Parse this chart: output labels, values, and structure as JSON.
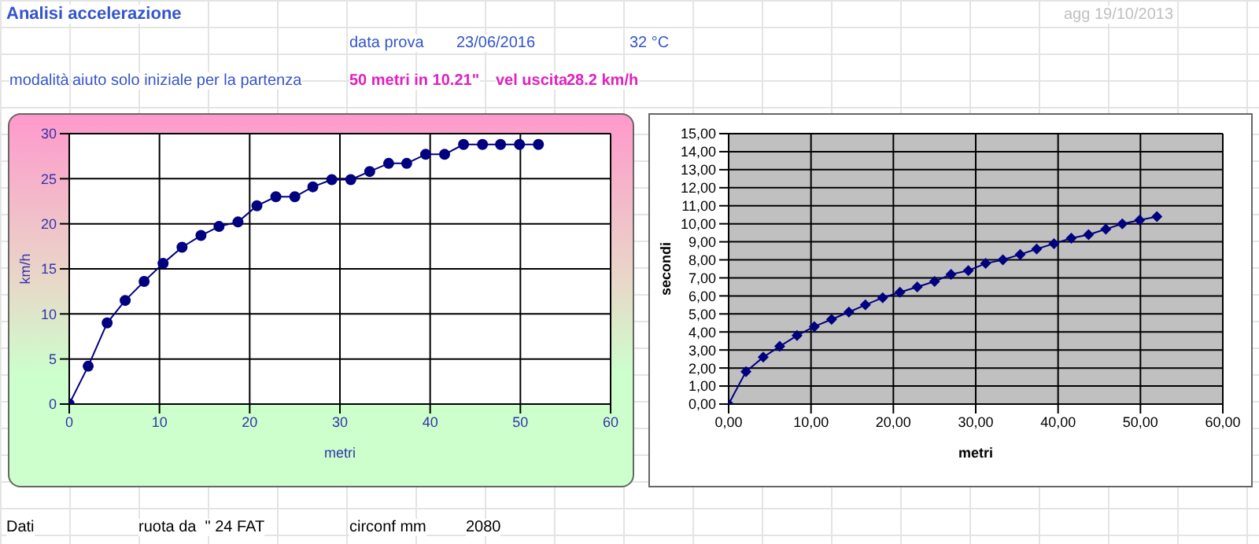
{
  "chart_data": [
    {
      "type": "line",
      "title": "Analisi accelerazione",
      "annotations": [
        "agg 19/10/2013",
        "data prova",
        "23/06/2016",
        "32 °C",
        "modalità",
        "aiuto solo iniziale per la partenza",
        "50 metri in 10.21\"",
        "vel uscita",
        "28.2 km/h",
        "Dati",
        "ruota da  \" 24 FAT",
        "circonf mm",
        "2080"
      ],
      "xlabel": "metri",
      "ylabel": "km/h",
      "xlim": [
        0,
        60
      ],
      "xticks": [
        0,
        10,
        20,
        30,
        40,
        50,
        60
      ],
      "ylim": [
        0,
        30
      ],
      "yticks": [
        0,
        5,
        10,
        15,
        20,
        25,
        30
      ],
      "grid": true,
      "marker": "circle",
      "line_style": "solid",
      "x": [
        0,
        2.1,
        4.2,
        6.2,
        8.3,
        10.4,
        12.5,
        14.6,
        16.6,
        18.7,
        20.8,
        22.9,
        25,
        27,
        29.1,
        31.2,
        33.3,
        35.4,
        37.4,
        39.5,
        41.6,
        43.7,
        45.8,
        47.8,
        49.9,
        52
      ],
      "series": [
        {
          "color": "#000080",
          "values": [
            0,
            4.2,
            9,
            11.5,
            13.6,
            15.6,
            17.4,
            18.7,
            19.7,
            20.2,
            22,
            23,
            23,
            24.1,
            24.9,
            24.9,
            25.8,
            26.7,
            26.7,
            27.7,
            27.7,
            28.8,
            28.8,
            28.8,
            28.8,
            28.8
          ]
        }
      ]
    },
    {
      "type": "line",
      "xlabel": "metri",
      "ylabel": "secondi",
      "xlim": [
        0,
        60
      ],
      "xticks": [
        {
          "value": 0,
          "label": "0,00"
        },
        {
          "value": 10,
          "label": "10,00"
        },
        {
          "value": 20,
          "label": "20,00"
        },
        {
          "value": 30,
          "label": "30,00"
        },
        {
          "value": 40,
          "label": "40,00"
        },
        {
          "value": 50,
          "label": "50,00"
        },
        {
          "value": 60,
          "label": "60,00"
        }
      ],
      "ylim": [
        0,
        15
      ],
      "yticks": [
        {
          "value": 0,
          "label": "0,00"
        },
        {
          "value": 1,
          "label": "1,00"
        },
        {
          "value": 2,
          "label": "2,00"
        },
        {
          "value": 3,
          "label": "3,00"
        },
        {
          "value": 4,
          "label": "4,00"
        },
        {
          "value": 5,
          "label": "5,00"
        },
        {
          "value": 6,
          "label": "6,00"
        },
        {
          "value": 7,
          "label": "7,00"
        },
        {
          "value": 8,
          "label": "8,00"
        },
        {
          "value": 9,
          "label": "9,00"
        },
        {
          "value": 10,
          "label": "10,00"
        },
        {
          "value": 11,
          "label": "11,00"
        },
        {
          "value": 12,
          "label": "12,00"
        },
        {
          "value": 13,
          "label": "13,00"
        },
        {
          "value": 14,
          "label": "14,00"
        },
        {
          "value": 15,
          "label": "15,00"
        }
      ],
      "grid": true,
      "marker": "diamond",
      "line_style": "solid",
      "x": [
        0,
        2.1,
        4.2,
        6.2,
        8.3,
        10.4,
        12.5,
        14.6,
        16.6,
        18.7,
        20.8,
        22.9,
        25,
        27,
        29.1,
        31.2,
        33.3,
        35.4,
        37.4,
        39.5,
        41.6,
        43.7,
        45.8,
        47.8,
        49.9,
        52
      ],
      "series": [
        {
          "color": "#000080",
          "values": [
            0,
            1.8,
            2.6,
            3.2,
            3.8,
            4.3,
            4.7,
            5.1,
            5.5,
            5.9,
            6.2,
            6.5,
            6.8,
            7.2,
            7.4,
            7.8,
            8,
            8.3,
            8.6,
            8.9,
            9.2,
            9.4,
            9.7,
            10,
            10.2,
            10.4
          ]
        }
      ]
    }
  ]
}
